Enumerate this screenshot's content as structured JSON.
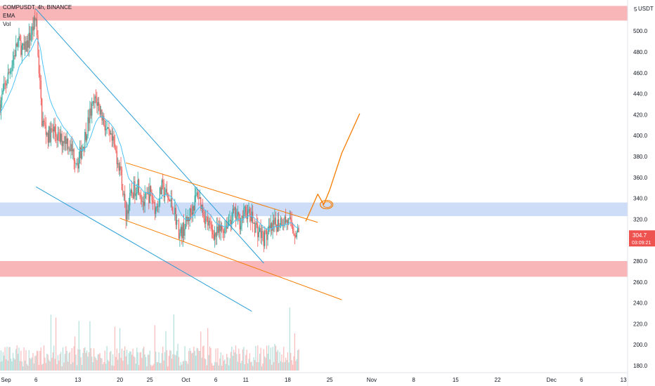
{
  "header": {
    "symbol_line": "COMPUSDT, 4h, BINANCE",
    "indicator_1": "EMA",
    "indicator_2": "Vol"
  },
  "price_axis": {
    "unit": "USDT",
    "top_tick": "5",
    "ticks": [
      "500.0",
      "480.0",
      "460.0",
      "440.0",
      "420.0",
      "400.0",
      "380.0",
      "360.0",
      "340.0",
      "320.0",
      "280.0",
      "260.0",
      "240.0",
      "220.0",
      "200.0",
      "180.0"
    ],
    "last_price": "304.7",
    "countdown": "03:09:21"
  },
  "time_axis": {
    "labels": [
      "Sep",
      "6",
      "13",
      "20",
      "25",
      "Oct",
      "6",
      "11",
      "18",
      "25",
      "Nov",
      "8",
      "15",
      "22",
      "Dec",
      "6",
      "13"
    ]
  },
  "colors": {
    "up": "#26a69a",
    "down": "#ef5350",
    "volume_up": "#b2dfdb",
    "volume_down": "#f8bbbb",
    "ema": "#4fc3f7",
    "zone_red": "#f7a9ad",
    "zone_blue": "#bcd1f5",
    "channel_blue": "#2a9fd6",
    "channel_orange": "#f57c00",
    "price_tag": "#ef5350"
  },
  "chart_data": {
    "type": "candlestick",
    "instrument": "COMPUSDT",
    "timeframe": "4h",
    "exchange": "BINANCE",
    "y_unit": "USDT",
    "ylim": [
      172,
      523
    ],
    "x_range": [
      "2021-08-31",
      "2021-12-17"
    ],
    "grid": false,
    "price_path": [
      {
        "date": "2021-08-31",
        "price": 430
      },
      {
        "date": "2021-09-01",
        "price": 450
      },
      {
        "date": "2021-09-02",
        "price": 470
      },
      {
        "date": "2021-09-03",
        "price": 490
      },
      {
        "date": "2021-09-04",
        "price": 480
      },
      {
        "date": "2021-09-05",
        "price": 495
      },
      {
        "date": "2021-09-06",
        "price": 512
      },
      {
        "date": "2021-09-07",
        "price": 415
      },
      {
        "date": "2021-09-08",
        "price": 400
      },
      {
        "date": "2021-09-09",
        "price": 405
      },
      {
        "date": "2021-09-10",
        "price": 395
      },
      {
        "date": "2021-09-11",
        "price": 398
      },
      {
        "date": "2021-09-12",
        "price": 385
      },
      {
        "date": "2021-09-13",
        "price": 375
      },
      {
        "date": "2021-09-14",
        "price": 395
      },
      {
        "date": "2021-09-15",
        "price": 420
      },
      {
        "date": "2021-09-16",
        "price": 435
      },
      {
        "date": "2021-09-17",
        "price": 420
      },
      {
        "date": "2021-09-18",
        "price": 400
      },
      {
        "date": "2021-09-19",
        "price": 390
      },
      {
        "date": "2021-09-20",
        "price": 370
      },
      {
        "date": "2021-09-21",
        "price": 325
      },
      {
        "date": "2021-09-22",
        "price": 345
      },
      {
        "date": "2021-09-23",
        "price": 355
      },
      {
        "date": "2021-09-24",
        "price": 335
      },
      {
        "date": "2021-09-25",
        "price": 345
      },
      {
        "date": "2021-09-26",
        "price": 330
      },
      {
        "date": "2021-09-27",
        "price": 350
      },
      {
        "date": "2021-09-28",
        "price": 340
      },
      {
        "date": "2021-09-29",
        "price": 330
      },
      {
        "date": "2021-09-30",
        "price": 305
      },
      {
        "date": "2021-10-01",
        "price": 315
      },
      {
        "date": "2021-10-02",
        "price": 330
      },
      {
        "date": "2021-10-03",
        "price": 345
      },
      {
        "date": "2021-10-04",
        "price": 325
      },
      {
        "date": "2021-10-05",
        "price": 312
      },
      {
        "date": "2021-10-06",
        "price": 305
      },
      {
        "date": "2021-10-07",
        "price": 310
      },
      {
        "date": "2021-10-08",
        "price": 318
      },
      {
        "date": "2021-10-09",
        "price": 325
      },
      {
        "date": "2021-10-10",
        "price": 318
      },
      {
        "date": "2021-10-11",
        "price": 328
      },
      {
        "date": "2021-10-12",
        "price": 320
      },
      {
        "date": "2021-10-13",
        "price": 310
      },
      {
        "date": "2021-10-14",
        "price": 302
      },
      {
        "date": "2021-10-15",
        "price": 308
      },
      {
        "date": "2021-10-16",
        "price": 315
      },
      {
        "date": "2021-10-17",
        "price": 320
      },
      {
        "date": "2021-10-18",
        "price": 318
      },
      {
        "date": "2021-10-19",
        "price": 310
      },
      {
        "date": "2021-10-20",
        "price": 305
      }
    ],
    "last_price": 304.7,
    "zones": [
      {
        "color": "red",
        "from": 510,
        "to": 524
      },
      {
        "color": "blue",
        "from": 323,
        "to": 336
      },
      {
        "color": "red",
        "from": 265,
        "to": 280
      }
    ],
    "trendlines": [
      {
        "color": "blue",
        "points": [
          {
            "date": "2021-09-06",
            "price": 521
          },
          {
            "date": "2021-10-14",
            "price": 278
          }
        ]
      },
      {
        "color": "blue",
        "points": [
          {
            "date": "2021-09-06",
            "price": 351
          },
          {
            "date": "2021-10-12",
            "price": 232
          }
        ]
      },
      {
        "color": "orange",
        "points": [
          {
            "date": "2021-09-21",
            "price": 374
          },
          {
            "date": "2021-10-23",
            "price": 317
          }
        ]
      },
      {
        "color": "orange",
        "points": [
          {
            "date": "2021-09-20",
            "price": 321
          },
          {
            "date": "2021-10-27",
            "price": 243
          }
        ]
      }
    ],
    "projection": [
      {
        "date": "2021-10-21",
        "price": 318
      },
      {
        "date": "2021-10-22",
        "price": 331
      },
      {
        "date": "2021-10-23",
        "price": 344
      },
      {
        "date": "2021-10-24",
        "price": 334
      },
      {
        "date": "2021-10-25",
        "price": 348
      },
      {
        "date": "2021-10-27",
        "price": 383
      },
      {
        "date": "2021-10-30",
        "price": 421
      }
    ]
  }
}
